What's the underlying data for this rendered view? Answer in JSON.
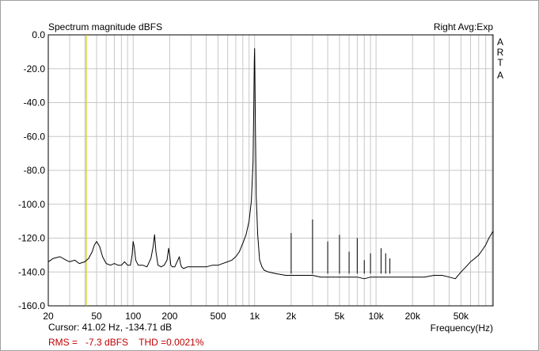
{
  "chart_data": {
    "type": "line",
    "title": "Spectrum magnitude dBFS",
    "top_right_label": "Right Avg:Exp",
    "brand_label": [
      "A",
      "R",
      "T",
      "A"
    ],
    "xlabel": "Frequency(Hz)",
    "ylabel": "",
    "x_scale": "log",
    "xlim": [
      20,
      92000
    ],
    "ylim": [
      -160,
      0
    ],
    "x_ticks": [
      {
        "value": 20,
        "label": "20"
      },
      {
        "value": 50,
        "label": "50"
      },
      {
        "value": 100,
        "label": "100"
      },
      {
        "value": 200,
        "label": "200"
      },
      {
        "value": 500,
        "label": "500"
      },
      {
        "value": 1000,
        "label": "1k"
      },
      {
        "value": 2000,
        "label": "2k"
      },
      {
        "value": 5000,
        "label": "5k"
      },
      {
        "value": 10000,
        "label": "10k"
      },
      {
        "value": 20000,
        "label": "20k"
      },
      {
        "value": 50000,
        "label": "50k"
      }
    ],
    "y_ticks": [
      {
        "value": 0,
        "label": "0.0"
      },
      {
        "value": -20,
        "label": "-20.0"
      },
      {
        "value": -40,
        "label": "-40.0"
      },
      {
        "value": -60,
        "label": "-60.0"
      },
      {
        "value": -80,
        "label": "-80.0"
      },
      {
        "value": -100,
        "label": "-100.0"
      },
      {
        "value": -120,
        "label": "-120.0"
      },
      {
        "value": -140,
        "label": "-140.0"
      },
      {
        "value": -160,
        "label": "-160.0"
      }
    ],
    "grid": true,
    "cursor_frequency": 41.02,
    "series": [
      {
        "color": "#000000",
        "x": [
          20,
          22,
          25,
          28,
          30,
          33,
          36,
          40,
          43,
          46,
          48,
          50,
          53,
          56,
          60,
          65,
          70,
          75,
          80,
          85,
          90,
          95,
          98,
          100,
          102,
          105,
          110,
          120,
          130,
          140,
          146,
          150,
          154,
          160,
          170,
          180,
          190,
          196,
          200,
          204,
          210,
          220,
          230,
          240,
          245,
          250,
          260,
          280,
          300,
          350,
          400,
          450,
          500,
          600,
          650,
          700,
          750,
          800,
          850,
          900,
          940,
          970,
          985,
          995,
          1000,
          1005,
          1015,
          1030,
          1060,
          1100,
          1150,
          1200,
          1300,
          1500,
          1800,
          2000,
          2500,
          3000,
          3500,
          4000,
          5000,
          6000,
          7000,
          8000,
          9000,
          10000,
          12000,
          15000,
          20000,
          25000,
          30000,
          35000,
          40000,
          45000,
          50000,
          55000,
          60000,
          65000,
          70000,
          75000,
          80000,
          85000,
          92000
        ],
        "y": [
          -134,
          -132,
          -131,
          -133,
          -134,
          -133,
          -135,
          -134,
          -132,
          -128,
          -124,
          -122,
          -125,
          -131,
          -135,
          -136,
          -135,
          -136,
          -136,
          -134,
          -136,
          -136,
          -130,
          -122,
          -125,
          -133,
          -136,
          -136,
          -137,
          -132,
          -125,
          -118,
          -128,
          -136,
          -137,
          -136,
          -133,
          -126,
          -130,
          -136,
          -137,
          -137,
          -134,
          -131,
          -135,
          -137,
          -138,
          -137,
          -137,
          -137,
          -137,
          -136,
          -136,
          -134,
          -133,
          -131,
          -128,
          -123,
          -118,
          -110,
          -98,
          -75,
          -40,
          -15,
          -8,
          -20,
          -55,
          -95,
          -118,
          -133,
          -137,
          -139,
          -140,
          -141,
          -142,
          -142,
          -142,
          -142,
          -143,
          -143,
          -143,
          -143,
          -143,
          -144,
          -143,
          -143,
          -143,
          -143,
          -143,
          -143,
          -142,
          -142,
          -143,
          -144,
          -140,
          -137,
          -134,
          -132,
          -130,
          -127,
          -124,
          -120,
          -116
        ]
      }
    ],
    "spurs": [
      {
        "x": 2000,
        "y": -117
      },
      {
        "x": 3000,
        "y": -109
      },
      {
        "x": 4000,
        "y": -122
      },
      {
        "x": 5000,
        "y": -118
      },
      {
        "x": 6000,
        "y": -128
      },
      {
        "x": 7000,
        "y": -120
      },
      {
        "x": 8000,
        "y": -133
      },
      {
        "x": 9000,
        "y": -129
      },
      {
        "x": 11000,
        "y": -126
      },
      {
        "x": 12000,
        "y": -129
      },
      {
        "x": 13000,
        "y": -132
      }
    ]
  },
  "status": {
    "cursor": "Cursor: 41.02 Hz, -134.71 dB",
    "rms": "RMS =   -7.3 dBFS    THD =0.0021%"
  },
  "colors": {
    "grid": "#c8c8c8",
    "cursor": "#c8c800",
    "trace": "#000000",
    "rms_text": "#c00000"
  }
}
